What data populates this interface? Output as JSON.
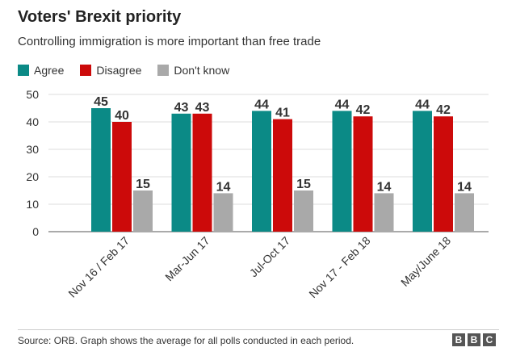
{
  "chart_data": {
    "type": "bar",
    "title": "Voters' Brexit priority",
    "subtitle": "Controlling immigration is more important than free trade",
    "categories": [
      "Nov 16 / Feb 17",
      "Mar-Jun 17",
      "Jul-Oct 17",
      "Nov 17 - Feb 18",
      "May/June 18"
    ],
    "series": [
      {
        "name": "Agree",
        "color": "#0b8a86",
        "values": [
          45,
          43,
          44,
          44,
          44
        ]
      },
      {
        "name": "Disagree",
        "color": "#cc0a0a",
        "values": [
          40,
          43,
          41,
          42,
          42
        ]
      },
      {
        "name": "Don't know",
        "color": "#a9a9a9",
        "values": [
          15,
          14,
          15,
          14,
          14
        ]
      }
    ],
    "yticks": [
      0,
      10,
      20,
      30,
      40,
      50
    ],
    "ylim": [
      0,
      50
    ],
    "xlabel": "",
    "ylabel": "",
    "grid": true,
    "legend_position": "top-left"
  },
  "footer": {
    "source": "Source: ORB. Graph shows the average for all polls conducted in each period.",
    "logo_letters": [
      "B",
      "B",
      "C"
    ]
  }
}
